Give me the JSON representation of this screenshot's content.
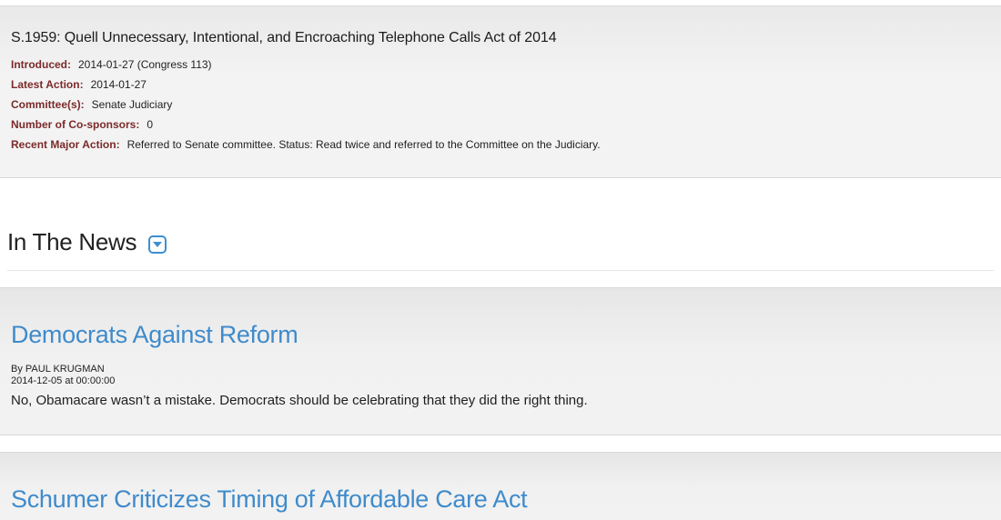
{
  "bill": {
    "title": "S.1959: Quell Unnecessary, Intentional, and Encroaching Telephone Calls Act of 2014",
    "fields": [
      {
        "label": "Introduced:",
        "value": "2014-01-27 (Congress 113)"
      },
      {
        "label": "Latest Action:",
        "value": "2014-01-27"
      },
      {
        "label": "Committee(s):",
        "value": "Senate Judiciary"
      },
      {
        "label": "Number of Co-sponsors:",
        "value": "0"
      },
      {
        "label": "Recent Major Action:",
        "value": "Referred to Senate committee. Status: Read twice and referred to the Committee on the Judiciary."
      }
    ]
  },
  "news": {
    "heading": "In The News",
    "toggle_icon": "chevron-down-icon",
    "accent_color": "#3f8bcb",
    "articles": [
      {
        "title": "Democrats Against Reform",
        "author": "By PAUL KRUGMAN",
        "date": "2014-12-05 at 00:00:00",
        "summary": "No, Obamacare wasn’t a mistake. Democrats should be celebrating that they did the right thing."
      },
      {
        "title": "Schumer Criticizes Timing of Affordable Care Act"
      }
    ]
  }
}
